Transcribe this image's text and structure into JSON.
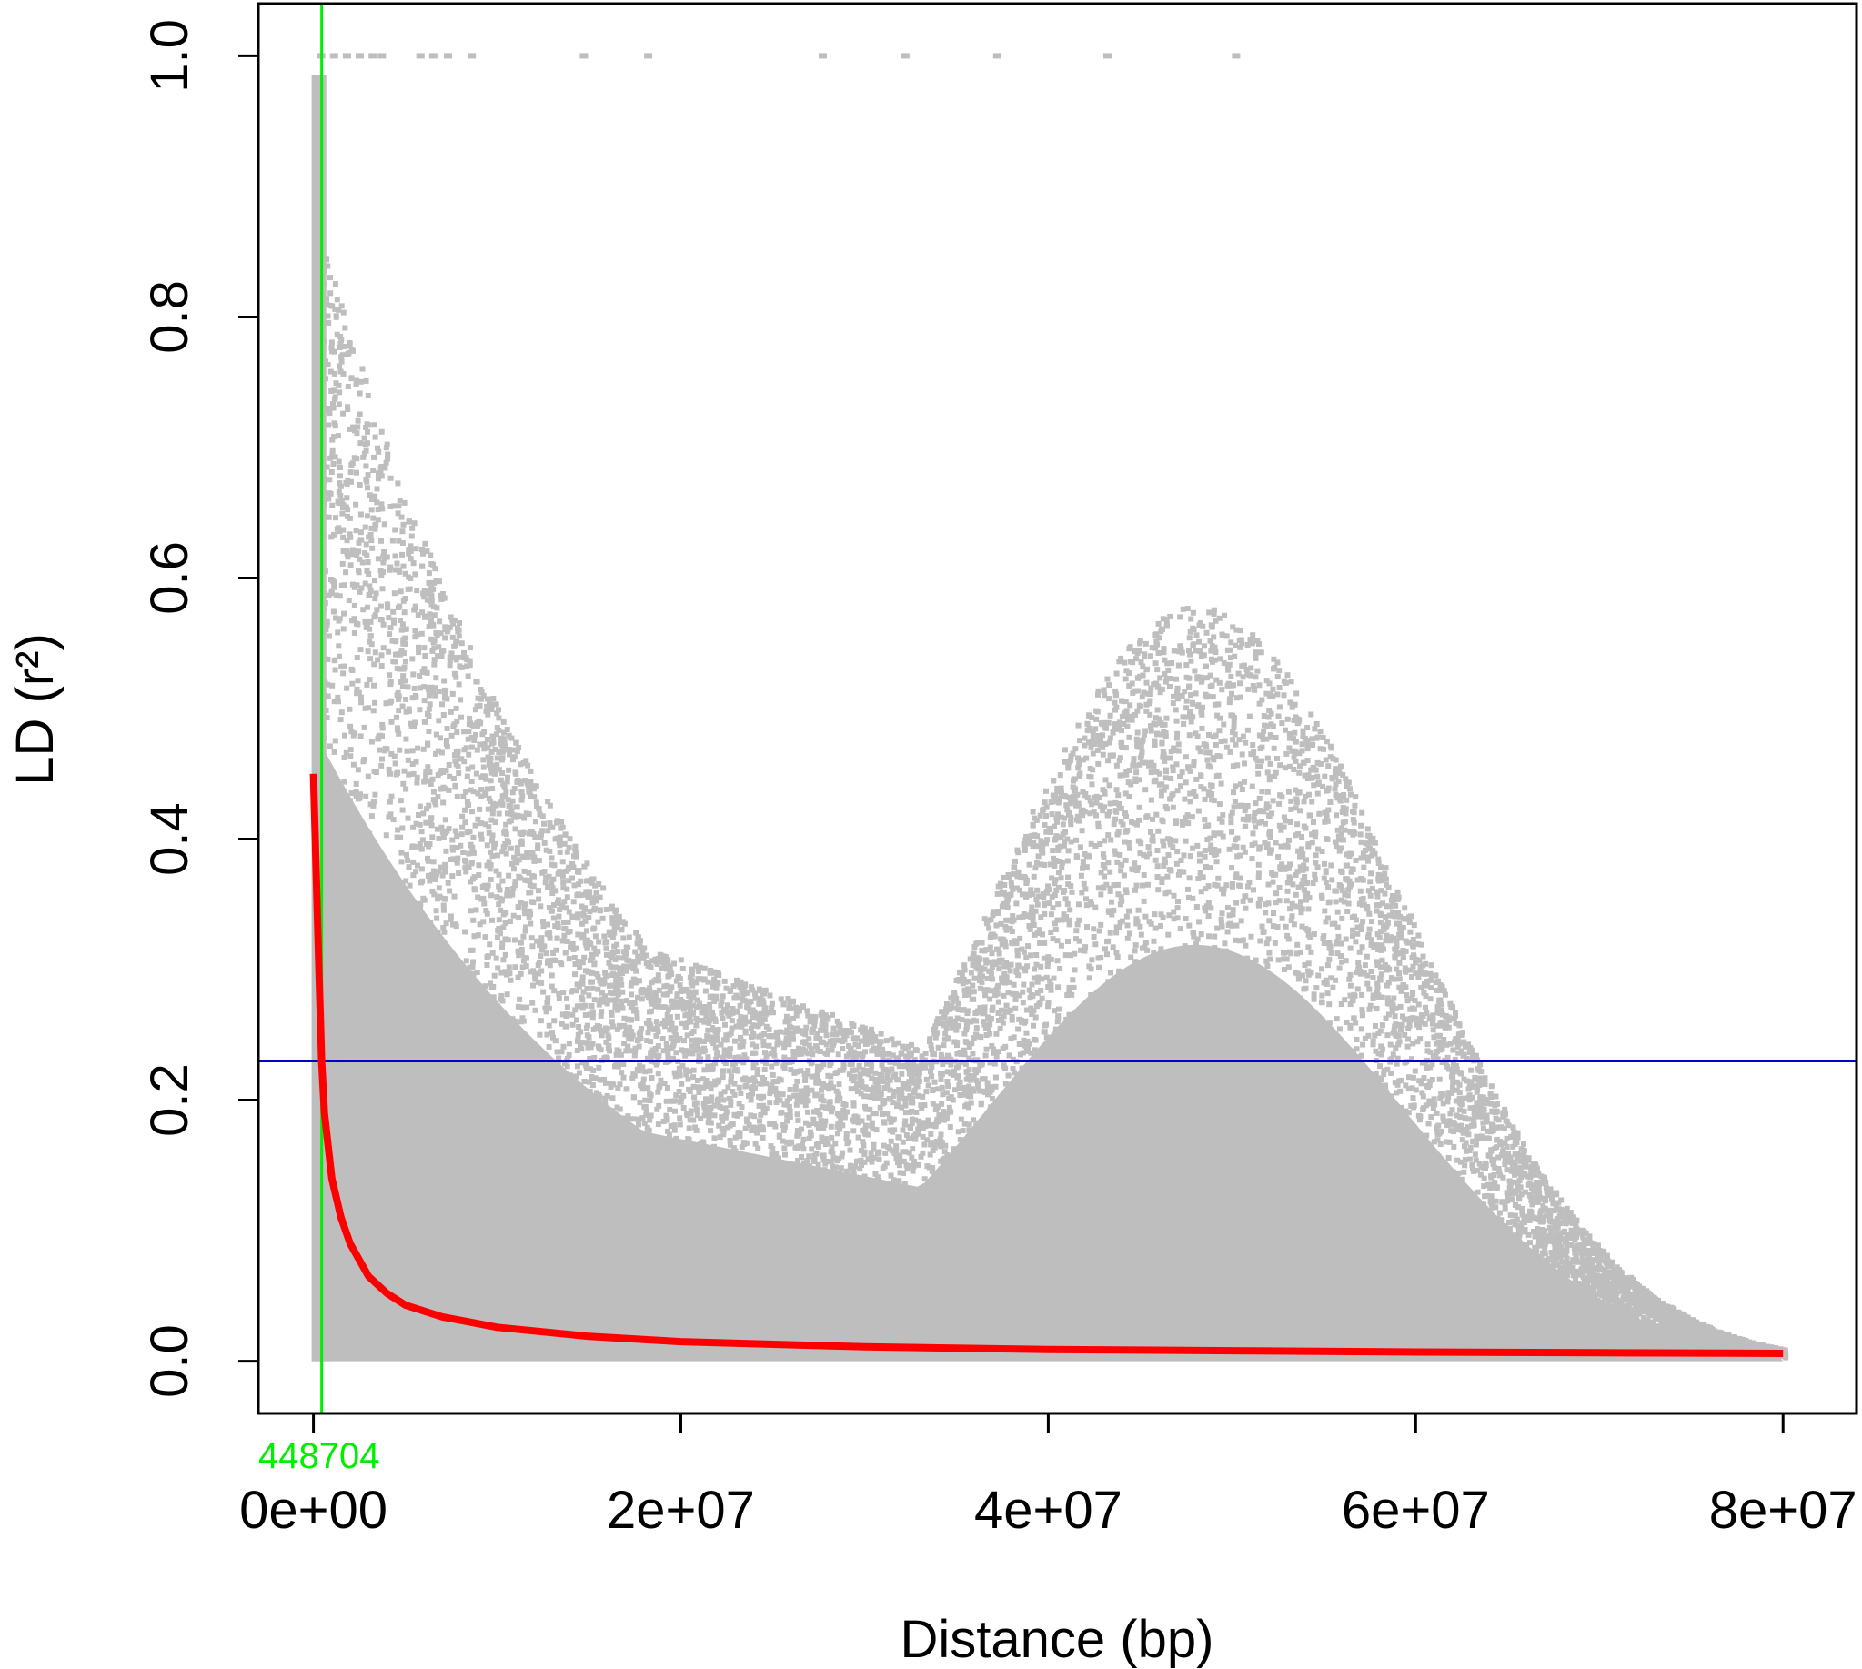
{
  "chart_data": {
    "type": "scatter",
    "title": "",
    "xlabel": "Distance (bp)",
    "ylabel": "LD (r²)",
    "xlim": [
      -3000000,
      84000000
    ],
    "ylim": [
      -0.04,
      1.04
    ],
    "x_ticks": [
      {
        "value": 0,
        "label": "0e+00"
      },
      {
        "value": 20000000,
        "label": "2e+07"
      },
      {
        "value": 40000000,
        "label": "4e+07"
      },
      {
        "value": 60000000,
        "label": "6e+07"
      },
      {
        "value": 80000000,
        "label": "8e+07"
      }
    ],
    "y_ticks": [
      {
        "value": 0.0,
        "label": "0.0"
      },
      {
        "value": 0.2,
        "label": "0.2"
      },
      {
        "value": 0.4,
        "label": "0.4"
      },
      {
        "value": 0.6,
        "label": "0.6"
      },
      {
        "value": 0.8,
        "label": "0.8"
      },
      {
        "value": 1.0,
        "label": "1.0"
      }
    ],
    "grid": false,
    "legend": "none",
    "scatter": {
      "color": "#bebebe",
      "description_bands": [
        {
          "x_from": 0,
          "x_to": 80000000,
          "r2_dense_upper_at_start": 0.88,
          "r2_dense_upper_at_end": 0.02
        }
      ]
    },
    "decay_curve": {
      "color": "#ff0000",
      "points": [
        [
          0,
          0.45
        ],
        [
          100000,
          0.4
        ],
        [
          300000,
          0.3
        ],
        [
          448704,
          0.23
        ],
        [
          600000,
          0.19
        ],
        [
          1000000,
          0.14
        ],
        [
          1500000,
          0.11
        ],
        [
          2000000,
          0.09
        ],
        [
          3000000,
          0.065
        ],
        [
          4000000,
          0.052
        ],
        [
          5000000,
          0.043
        ],
        [
          7000000,
          0.034
        ],
        [
          10000000,
          0.026
        ],
        [
          15000000,
          0.019
        ],
        [
          20000000,
          0.015
        ],
        [
          30000000,
          0.011
        ],
        [
          40000000,
          0.009
        ],
        [
          50000000,
          0.008
        ],
        [
          60000000,
          0.007
        ],
        [
          70000000,
          0.0065
        ],
        [
          80000000,
          0.006
        ]
      ]
    },
    "hline": {
      "y": 0.23,
      "color": "#0000cd"
    },
    "vline": {
      "x": 448704,
      "color": "#00ee00",
      "label": "448704"
    }
  }
}
